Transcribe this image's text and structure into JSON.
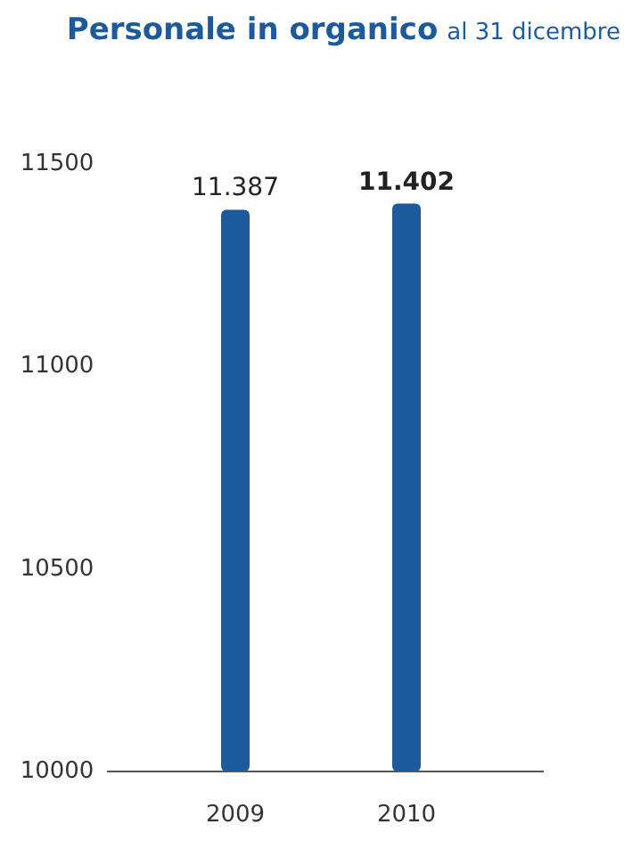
{
  "chart_data": {
    "type": "bar",
    "title": "Personale in organico",
    "subtitle": "al 31 dicembre",
    "categories": [
      "2009",
      "2010"
    ],
    "values": [
      11387,
      11402
    ],
    "value_labels": [
      "11.387",
      "11.402"
    ],
    "color": "#1d5a9c",
    "ylim": [
      10000,
      11500
    ],
    "yticks": [
      10000,
      10500,
      11000,
      11500
    ],
    "grid": false
  }
}
